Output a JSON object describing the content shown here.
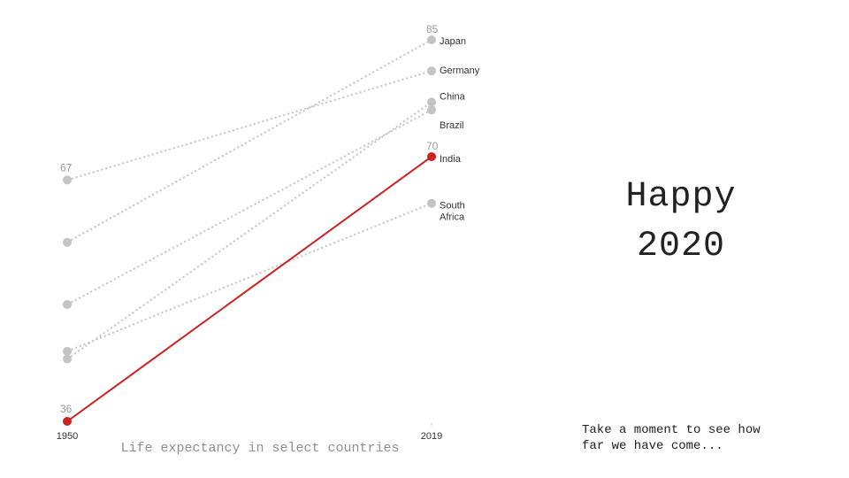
{
  "chart_data": {
    "type": "line",
    "subtype": "slope",
    "title": "",
    "caption": "Life expectancy in select countries",
    "x": [
      "1950",
      "2019"
    ],
    "ylim": [
      36,
      85
    ],
    "grid": false,
    "series": [
      {
        "name": "Japan",
        "values": [
          59,
          85
        ],
        "color": "#c4c4c4",
        "highlight": false
      },
      {
        "name": "Germany",
        "values": [
          67,
          81
        ],
        "color": "#c4c4c4",
        "highlight": false
      },
      {
        "name": "China",
        "values": [
          44,
          77
        ],
        "color": "#c4c4c4",
        "highlight": false
      },
      {
        "name": "Brazil",
        "values": [
          51,
          76
        ],
        "color": "#c4c4c4",
        "highlight": false
      },
      {
        "name": "India",
        "values": [
          36,
          70
        ],
        "color": "#cc2222",
        "highlight": true
      },
      {
        "name": "South Africa",
        "values": [
          45,
          64
        ],
        "color": "#c4c4c4",
        "highlight": false
      }
    ],
    "value_labels": {
      "start": [
        67,
        36
      ],
      "end": [
        85,
        70
      ]
    }
  },
  "headline": {
    "line1": "Happy",
    "line2": "2020"
  },
  "note": "Take a moment to see how\nfar we have come..."
}
